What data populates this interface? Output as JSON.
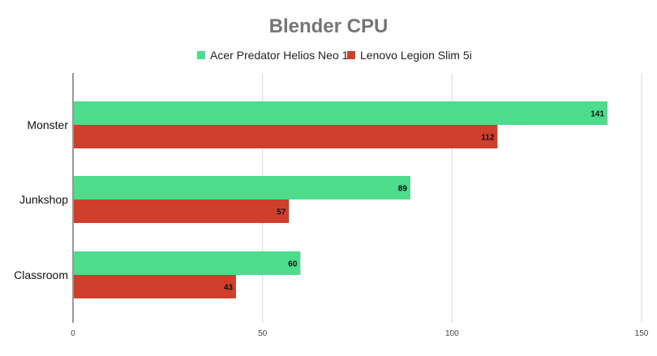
{
  "chart_data": {
    "type": "bar",
    "orientation": "horizontal",
    "title": "Blender CPU",
    "categories": [
      "Monster",
      "Junkshop",
      "Classroom"
    ],
    "series": [
      {
        "name": "Acer Predator Helios Neo 16",
        "color": "#4ddb8c",
        "values": [
          141,
          89,
          60
        ]
      },
      {
        "name": "Lenovo Legion Slim 5i",
        "color": "#cf3f2b",
        "values": [
          112,
          57,
          43
        ]
      }
    ],
    "xlim": [
      0,
      150
    ],
    "xticks": [
      "0",
      "50",
      "100",
      "150"
    ],
    "xlabel": "",
    "ylabel": "",
    "grid": true,
    "legend": "top-center",
    "data_labels": true
  }
}
